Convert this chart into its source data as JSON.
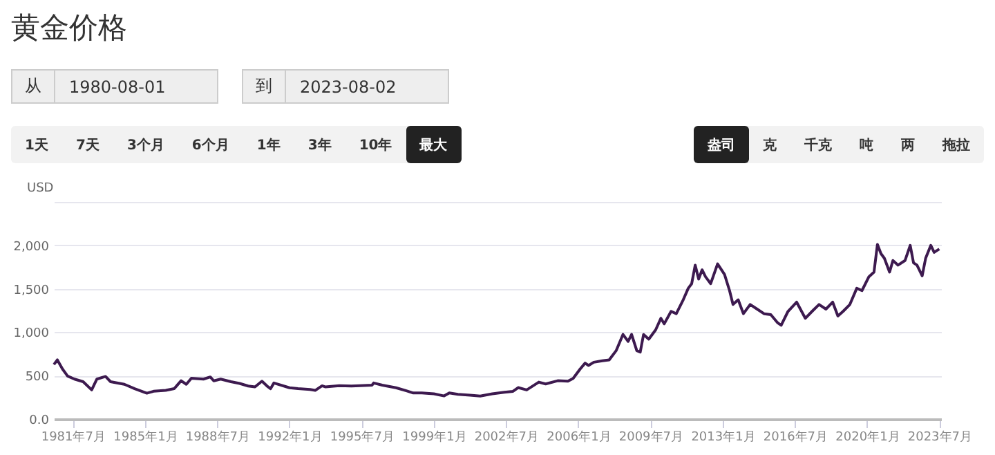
{
  "chart_data": {
    "type": "line",
    "title": "黄金价格",
    "ylabel": "USD",
    "annotations": [
      "从",
      "1980-08-01",
      "到",
      "2023-08-02",
      "1天",
      "7天",
      "3个月",
      "6个月",
      "1年",
      "3年",
      "10年",
      "最大",
      "盎司",
      "克",
      "千克",
      "吨",
      "两",
      "拖拉"
    ],
    "x": [
      "1980-08",
      "1980-10",
      "1981-01",
      "1981-04",
      "1981-08",
      "1982-01",
      "1982-06",
      "1982-09",
      "1983-02",
      "1983-05",
      "1984-01",
      "1984-07",
      "1985-02",
      "1985-06",
      "1986-01",
      "1986-06",
      "1986-10",
      "1987-01",
      "1987-04",
      "1987-11",
      "1988-03",
      "1988-05",
      "1988-09",
      "1989-03",
      "1989-08",
      "1990-01",
      "1990-05",
      "1990-09",
      "1990-12",
      "1991-02",
      "1991-04",
      "1992-01",
      "1992-06",
      "1993-01",
      "1993-04",
      "1993-08",
      "1993-10",
      "1994-06",
      "1995-01",
      "1995-06",
      "1996-01",
      "1996-02",
      "1996-07",
      "1997-03",
      "1997-09",
      "1998-01",
      "1998-06",
      "1999-01",
      "1999-07",
      "1999-10",
      "2000-03",
      "2000-10",
      "2001-04",
      "2001-11",
      "2002-06",
      "2002-11",
      "2003-02",
      "2003-07",
      "2004-02",
      "2004-06",
      "2005-01",
      "2005-07",
      "2005-10",
      "2006-02",
      "2006-05",
      "2006-07",
      "2006-10",
      "2007-03",
      "2007-07",
      "2007-11",
      "2008-03",
      "2008-06",
      "2008-08",
      "2008-11",
      "2009-01",
      "2009-03",
      "2009-06",
      "2009-10",
      "2010-01",
      "2010-03",
      "2010-07",
      "2010-10",
      "2011-02",
      "2011-05",
      "2011-07",
      "2011-09",
      "2011-11",
      "2012-01",
      "2012-03",
      "2012-06",
      "2012-10",
      "2013-02",
      "2013-05",
      "2013-07",
      "2013-10",
      "2014-01",
      "2014-05",
      "2014-09",
      "2015-01",
      "2015-05",
      "2015-09",
      "2015-11",
      "2016-03",
      "2016-08",
      "2017-01",
      "2017-05",
      "2017-09",
      "2018-01",
      "2018-05",
      "2018-08",
      "2018-11",
      "2019-03",
      "2019-07",
      "2019-10",
      "2020-02",
      "2020-05",
      "2020-07",
      "2020-09",
      "2020-11",
      "2021-02",
      "2021-04",
      "2021-07",
      "2021-11",
      "2022-02",
      "2022-04",
      "2022-06",
      "2022-09",
      "2022-11",
      "2023-02",
      "2023-04",
      "2023-07"
    ],
    "series": [
      {
        "color": "#3d1a4f",
        "values": [
          628,
          681,
          575,
          495,
          460,
          430,
          335,
          460,
          490,
          430,
          400,
          350,
          298,
          320,
          330,
          350,
          441,
          400,
          470,
          460,
          484,
          440,
          460,
          430,
          410,
          380,
          370,
          436,
          380,
          350,
          415,
          360,
          350,
          340,
          330,
          383,
          370,
          385,
          380,
          385,
          390,
          415,
          390,
          360,
          325,
          300,
          300,
          290,
          266,
          300,
          285,
          275,
          265,
          290,
          309,
          319,
          362,
          335,
          425,
          404,
          441,
          436,
          468,
          575,
          644,
          617,
          654,
          670,
          681,
          787,
          974,
          894,
          974,
          787,
          771,
          974,
          920,
          1027,
          1160,
          1096,
          1240,
          1213,
          1373,
          1506,
          1559,
          1772,
          1612,
          1718,
          1639,
          1559,
          1787,
          1665,
          1479,
          1319,
          1373,
          1213,
          1319,
          1266,
          1213,
          1202,
          1107,
          1080,
          1240,
          1346,
          1160,
          1240,
          1319,
          1266,
          1346,
          1186,
          1240,
          1319,
          1506,
          1479,
          1639,
          1692,
          2011,
          1905,
          1851,
          1692,
          1825,
          1772,
          1825,
          2000,
          1798,
          1772,
          1649,
          1851,
          2000,
          1920,
          1958
        ]
      }
    ],
    "xlim": [
      "1980-08-01",
      "2023-08-02"
    ],
    "xticks": [
      {
        "value": "1981-07",
        "label": "1981年7月"
      },
      {
        "value": "1985-01",
        "label": "1985年1月"
      },
      {
        "value": "1988-07",
        "label": "1988年7月"
      },
      {
        "value": "1992-01",
        "label": "1992年1月"
      },
      {
        "value": "1995-07",
        "label": "1995年7月"
      },
      {
        "value": "1999-01",
        "label": "1999年1月"
      },
      {
        "value": "2002-07",
        "label": "2002年7月"
      },
      {
        "value": "2006-01",
        "label": "2006年1月"
      },
      {
        "value": "2009-07",
        "label": "2009年7月"
      },
      {
        "value": "2013-01",
        "label": "2013年1月"
      },
      {
        "value": "2016-07",
        "label": "2016年7月"
      },
      {
        "value": "2020-01",
        "label": "2020年1月"
      },
      {
        "value": "2023-07",
        "label": "2023年7月"
      }
    ],
    "ylim": [
      0,
      2500
    ],
    "yticks": [
      {
        "value": 0,
        "label": "0.0"
      },
      {
        "value": 500,
        "label": "500"
      },
      {
        "value": 1000,
        "label": "1,000"
      },
      {
        "value": 1500,
        "label": "1,500"
      },
      {
        "value": 2000,
        "label": "2,000"
      },
      {
        "value": 2500,
        "label": null
      }
    ],
    "grid": "y"
  }
}
